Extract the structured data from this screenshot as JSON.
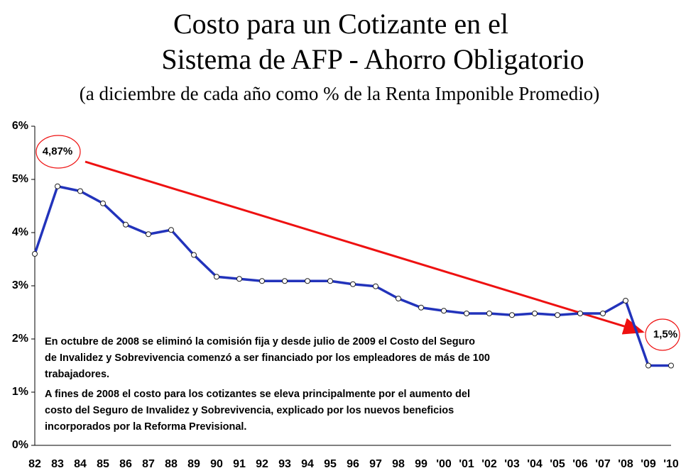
{
  "chart_data": {
    "type": "line",
    "title": [
      "Costo para un Cotizante en el",
      "Sistema de AFP - Ahorro Obligatorio"
    ],
    "subtitle": "(a diciembre de cada año como % de la Renta Imponible Promedio)",
    "categories": [
      "82",
      "83",
      "84",
      "85",
      "86",
      "87",
      "88",
      "89",
      "90",
      "91",
      "92",
      "93",
      "94",
      "95",
      "96",
      "97",
      "98",
      "99",
      "'00",
      "'01",
      "'02",
      "'03",
      "'04",
      "'05",
      "'06",
      "'07",
      "'08",
      "'09",
      "'10"
    ],
    "series": [
      {
        "name": "Costo",
        "color": "#2233bb",
        "values": [
          3.6,
          4.87,
          4.78,
          4.55,
          4.15,
          3.97,
          4.05,
          3.58,
          3.17,
          3.13,
          3.09,
          3.09,
          3.09,
          3.09,
          3.03,
          2.99,
          2.76,
          2.59,
          2.53,
          2.48,
          2.48,
          2.45,
          2.48,
          2.45,
          2.48,
          2.48,
          2.72,
          1.5,
          1.5
        ],
        "value_labels": [
          null,
          "4,87%",
          null,
          null,
          null,
          null,
          null,
          null,
          null,
          null,
          null,
          null,
          null,
          null,
          null,
          null,
          null,
          null,
          null,
          null,
          null,
          null,
          null,
          null,
          null,
          null,
          null,
          "1,5%",
          null
        ]
      }
    ],
    "ylim": [
      0,
      6
    ],
    "yticks": [
      {
        "value": 0,
        "label": "0%"
      },
      {
        "value": 1,
        "label": "1%"
      },
      {
        "value": 2,
        "label": "2%"
      },
      {
        "value": 3,
        "label": "3%"
      },
      {
        "value": 4,
        "label": "4%"
      },
      {
        "value": 5,
        "label": "5%"
      },
      {
        "value": 6,
        "label": "6%"
      }
    ],
    "notes": [
      [
        "En octubre de 2008 se eliminó la comisión fija y desde julio de 2009 el Costo del Seguro",
        "de Invalidez y Sobrevivencia comenzó a ser financiado por los empleadores de más de 100",
        "trabajadores."
      ],
      [
        "A fines de 2008 el costo para los cotizantes se eleva principalmente por el aumento del",
        "costo del Seguro de Invalidez y Sobrevivencia, explicado por los nuevos beneficios",
        "incorporados por la Reforma Previsional."
      ]
    ]
  }
}
